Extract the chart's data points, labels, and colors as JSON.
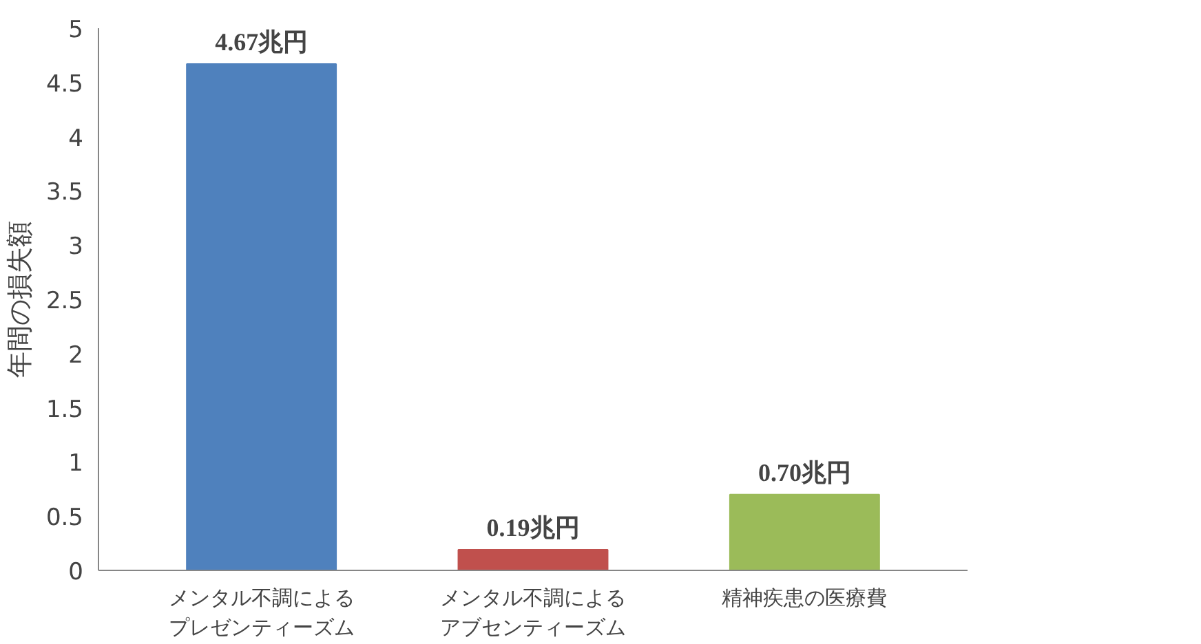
{
  "chart_data": {
    "type": "bar",
    "ylabel": "年間の損失額",
    "categories": [
      "メンタル不調によるプレゼンティーズム",
      "メンタル不調によるアブセンティーズム",
      "精神疾患の医療費"
    ],
    "values": [
      4.67,
      0.19,
      0.7
    ],
    "colors": [
      "#4f81bd",
      "#c0504d",
      "#9bbb59"
    ],
    "value_labels": [
      "4.67兆円",
      "0.19兆円",
      "0.70兆円"
    ],
    "ylim": [
      0,
      5
    ],
    "yticks": [
      0,
      0.5,
      1,
      1.5,
      2,
      2.5,
      3,
      3.5,
      4,
      4.5,
      5
    ],
    "grid": false
  }
}
